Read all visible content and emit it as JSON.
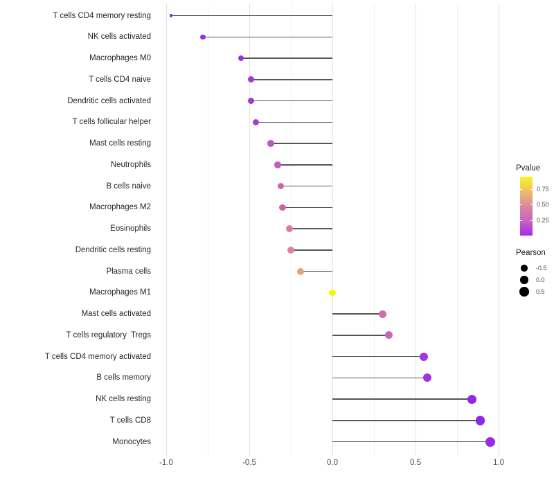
{
  "chart_data": {
    "type": "lollipop",
    "title": "",
    "xlabel": "",
    "ylabel": "",
    "xlim": [
      -1.07,
      1.07
    ],
    "grid": {
      "major_ticks": [
        -1.0,
        -0.5,
        0.0,
        0.5,
        1.0
      ],
      "minor_ticks": [
        -0.75,
        -0.25,
        0.25,
        0.75
      ],
      "horizontal_gridlines": false
    },
    "x_axis": {
      "ticks": [
        {
          "value": -1.0,
          "label": "-1.0"
        },
        {
          "value": -0.5,
          "label": "-0.5"
        },
        {
          "value": 0.0,
          "label": "0.0"
        },
        {
          "value": 0.5,
          "label": "0.5"
        },
        {
          "value": 1.0,
          "label": "1.0"
        }
      ]
    },
    "points": [
      {
        "label": "T cells CD4 memory resting",
        "pearson": -0.97,
        "pvalue_est": 0.005,
        "color": "#8929df",
        "size": 4.5
      },
      {
        "label": "NK cells activated",
        "pearson": -0.78,
        "pvalue_est": 0.03,
        "color": "#9430e0",
        "size": 7.5
      },
      {
        "label": "Macrophages M0",
        "pearson": -0.55,
        "pvalue_est": 0.06,
        "color": "#9c35d8",
        "size": 8.5
      },
      {
        "label": "T cells CD4 naive",
        "pearson": -0.49,
        "pvalue_est": 0.08,
        "color": "#a037d3",
        "size": 9
      },
      {
        "label": "Dendritic cells activated",
        "pearson": -0.49,
        "pvalue_est": 0.08,
        "color": "#a037d3",
        "size": 9
      },
      {
        "label": "T cells follicular helper",
        "pearson": -0.46,
        "pvalue_est": 0.1,
        "color": "#a83ecb",
        "size": 9
      },
      {
        "label": "Mast cells resting",
        "pearson": -0.37,
        "pvalue_est": 0.2,
        "color": "#c254c4",
        "size": 9.5
      },
      {
        "label": "Neutrophils",
        "pearson": -0.33,
        "pvalue_est": 0.24,
        "color": "#c65bb9",
        "size": 9.5
      },
      {
        "label": "B cells naive",
        "pearson": -0.31,
        "pvalue_est": 0.28,
        "color": "#cb64b0",
        "size": 9.5
      },
      {
        "label": "Macrophages M2",
        "pearson": -0.3,
        "pvalue_est": 0.29,
        "color": "#cc66ac",
        "size": 9.5
      },
      {
        "label": "Eosinophils",
        "pearson": -0.26,
        "pvalue_est": 0.4,
        "color": "#d8819f",
        "size": 10
      },
      {
        "label": "Dendritic cells resting",
        "pearson": -0.25,
        "pvalue_est": 0.41,
        "color": "#d9839c",
        "size": 10
      },
      {
        "label": "Plasma cells",
        "pearson": -0.19,
        "pvalue_est": 0.58,
        "color": "#e7a276",
        "size": 10
      },
      {
        "label": "Macrophages M1",
        "pearson": 0.0,
        "pvalue_est": 0.95,
        "color": "#f6f60c",
        "size": 9.5
      },
      {
        "label": "Mast cells activated",
        "pearson": 0.3,
        "pvalue_est": 0.3,
        "color": "#ce6fab",
        "size": 11
      },
      {
        "label": "T cells regulatory  Tregs",
        "pearson": 0.34,
        "pvalue_est": 0.22,
        "color": "#c866be",
        "size": 11
      },
      {
        "label": "T cells CD4 memory activated",
        "pearson": 0.55,
        "pvalue_est": 0.07,
        "color": "#a437db",
        "size": 12
      },
      {
        "label": "B cells memory",
        "pearson": 0.57,
        "pvalue_est": 0.06,
        "color": "#a133df",
        "size": 12
      },
      {
        "label": "NK cells resting",
        "pearson": 0.84,
        "pvalue_est": 0.02,
        "color": "#9129e3",
        "size": 13
      },
      {
        "label": "T cells CD8",
        "pearson": 0.89,
        "pvalue_est": 0.015,
        "color": "#8f27e4",
        "size": 13.5
      },
      {
        "label": "Monocytes",
        "pearson": 0.95,
        "pvalue_est": 0.01,
        "color": "#9a2be6",
        "size": 14
      }
    ],
    "stem_color": "#555555",
    "legend": {
      "pvalue": {
        "title": "Pvalue",
        "range": [
          0,
          0.95
        ],
        "ticks": [
          {
            "value": 0.75,
            "label": "0.75"
          },
          {
            "value": 0.5,
            "label": "0.50"
          },
          {
            "value": 0.25,
            "label": "0.25"
          }
        ],
        "gradient_bottom_to_top": [
          "#a32be8",
          "#c765c0",
          "#db87a0",
          "#efbd66",
          "#f9f823"
        ]
      },
      "pearson": {
        "title": "Pearson",
        "items": [
          {
            "label": "-0.5",
            "size": 9.5
          },
          {
            "label": "0.0",
            "size": 11.5
          },
          {
            "label": "0.5",
            "size": 13.5
          }
        ],
        "key_color": "#000000"
      }
    }
  }
}
